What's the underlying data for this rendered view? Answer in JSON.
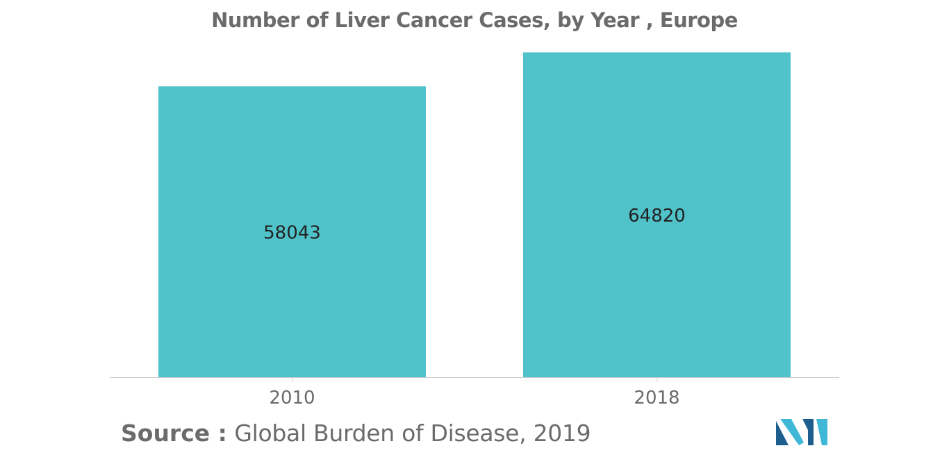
{
  "colors": {
    "bar": "#50c2c9",
    "text": "#6b6b6b",
    "axis": "#cccccc",
    "value_label": "#222222",
    "logo_dark": "#1d5e8f",
    "logo_light": "#3fb8d8"
  },
  "source": {
    "label": "Source :",
    "text": "Global Burden of Disease, 2019"
  },
  "logo": {
    "icon": "mordor-intelligence-logo-icon"
  },
  "chart_data": {
    "type": "bar",
    "title": "Number of Liver Cancer Cases, by Year , Europe",
    "xlabel": "",
    "ylabel": "",
    "categories": [
      "2010",
      "2018"
    ],
    "values": [
      58043,
      64820
    ],
    "ylim": [
      0,
      72500
    ],
    "grid": false,
    "legend": "none"
  }
}
